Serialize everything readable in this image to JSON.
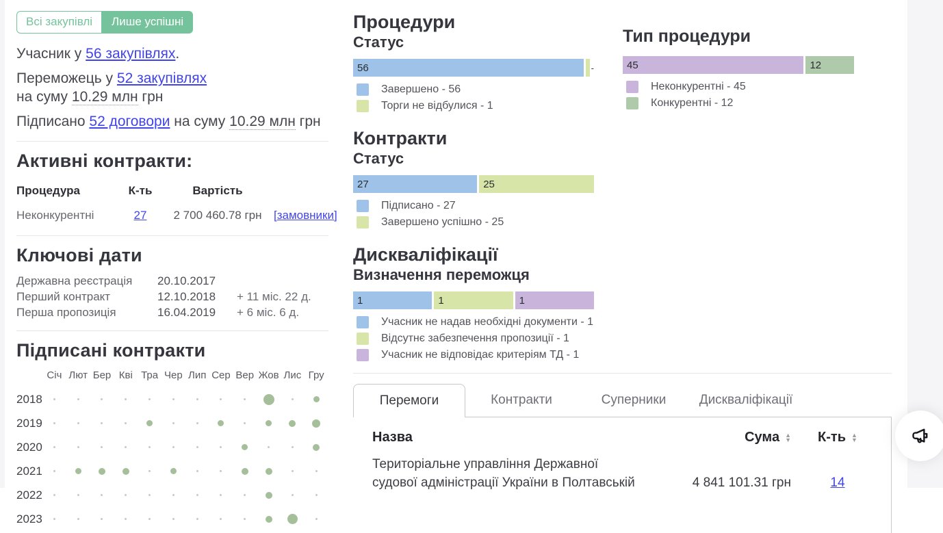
{
  "colors": {
    "accent_green": "#74c39c",
    "link_blue": "#4145e9",
    "bar_blue": "#9fc3e8",
    "bar_lime": "#d8e5a9",
    "bar_purple": "#c9b5dc",
    "bar_sage": "#aecaaa",
    "dot_green": "#a5bf9b",
    "dot_gray": "#c8c8c8"
  },
  "icons": {
    "sort_up": "▲",
    "sort_down": "▼",
    "fab": "megaphone"
  },
  "toggle": {
    "all_label": "Всі закупівлі",
    "successful_label": "Лише успішні"
  },
  "summary": {
    "line1_prefix": "Учасник у ",
    "line1_link": "56 закупівлях",
    "line1_suffix": ".",
    "line2_prefix": "Переможець у ",
    "line2_link": "52 закупівлях",
    "line2b_prefix": "на суму ",
    "line2b_amount": "10.29 млн",
    "line2b_suffix": " грн",
    "line3_prefix": "Підписано ",
    "line3_link": "52 договори",
    "line3_mid": " на суму ",
    "line3_amount": "10.29 млн",
    "line3_suffix": " грн"
  },
  "active_contracts": {
    "title": "Активні контракти:",
    "col_procedure": "Процедура",
    "col_count": "К-ть",
    "col_value": "Вартість",
    "rows": [
      {
        "procedure": "Неконкурентні",
        "count": "27",
        "value": "2 700 460.78 грн",
        "customers_link": "[замовники]"
      }
    ]
  },
  "key_dates": {
    "title": "Ключові дати",
    "rows": [
      {
        "label": "Державна реєстрація",
        "date": "20.10.2017",
        "delta": ""
      },
      {
        "label": "Перший контракт",
        "date": "12.10.2018",
        "delta": "+ 11 міс. 22 д."
      },
      {
        "label": "Перша пропозиція",
        "date": "16.04.2019",
        "delta": "+ 6 міс. 6 д."
      }
    ]
  },
  "signed_contracts": {
    "title": "Підписані контракти",
    "months": [
      "Січ",
      "Лют",
      "Бер",
      "Кві",
      "Тра",
      "Чер",
      "Лип",
      "Сер",
      "Вер",
      "Жов",
      "Лис",
      "Гру"
    ],
    "years": [
      "2018",
      "2019",
      "2020",
      "2021",
      "2022",
      "2023"
    ],
    "dot_sizes": [
      [
        0,
        0,
        0,
        0,
        0,
        0,
        0,
        0,
        0,
        16,
        0,
        9
      ],
      [
        0,
        0,
        0,
        0,
        9,
        0,
        0,
        9,
        0,
        9,
        10,
        12
      ],
      [
        0,
        0,
        0,
        0,
        0,
        0,
        0,
        0,
        9,
        0,
        0,
        10
      ],
      [
        0,
        9,
        10,
        10,
        0,
        9,
        0,
        0,
        10,
        10,
        0,
        0
      ],
      [
        0,
        0,
        0,
        0,
        0,
        0,
        0,
        0,
        0,
        10,
        0,
        0
      ],
      [
        0,
        0,
        0,
        0,
        0,
        0,
        0,
        0,
        0,
        10,
        15,
        0
      ]
    ]
  },
  "charts": {
    "procedures": {
      "title": "Процедури",
      "subtitle": "Статус",
      "type": "bar",
      "overflow_mark": "-",
      "segments": [
        {
          "value": 56,
          "label": "56",
          "color": "#9fc3e8",
          "legend": "Завершено - 56"
        },
        {
          "value": 1,
          "label": "",
          "color": "#d8e5a9",
          "legend": "Торги не відбулися - 1"
        }
      ]
    },
    "contracts": {
      "title": "Контракти",
      "subtitle": "Статус",
      "type": "bar",
      "segments": [
        {
          "value": 27,
          "label": "27",
          "color": "#9fc3e8",
          "legend": "Підписано - 27"
        },
        {
          "value": 25,
          "label": "25",
          "color": "#d8e5a9",
          "legend": "Завершено успішно - 25"
        }
      ]
    },
    "disqualifications": {
      "title": "Дискваліфікації",
      "subtitle": "Визначення переможця",
      "type": "bar",
      "segments": [
        {
          "value": 1,
          "label": "1",
          "color": "#9fc3e8",
          "legend": "Учасник не надав необхідні документи - 1"
        },
        {
          "value": 1,
          "label": "1",
          "color": "#d8e5a9",
          "legend": "Відсутнє забезпечення пропозиції - 1"
        },
        {
          "value": 1,
          "label": "1",
          "color": "#c9b5dc",
          "legend": "Учасник не відповідає критеріям ТД - 1"
        }
      ]
    },
    "procedure_type": {
      "title": "Тип процедури",
      "type": "bar",
      "segments": [
        {
          "value": 45,
          "label": "45",
          "color": "#c9b5dc",
          "legend": "Неконкурентні - 45"
        },
        {
          "value": 12,
          "label": "12",
          "color": "#aecaaa",
          "legend": "Конкурентні - 12"
        }
      ]
    }
  },
  "tabs": [
    {
      "label": "Перемоги",
      "active": true
    },
    {
      "label": "Контракти",
      "active": false
    },
    {
      "label": "Суперники",
      "active": false
    },
    {
      "label": "Дискваліфікації",
      "active": false
    }
  ],
  "results_table": {
    "col_name": "Назва",
    "col_sum": "Сума",
    "col_count": "К-ть",
    "rows": [
      {
        "name": "Територіальне управління Державної\nсудової адміністрації України в Полтавській",
        "sum": "4 841 101.31 грн",
        "count": "14"
      }
    ]
  }
}
